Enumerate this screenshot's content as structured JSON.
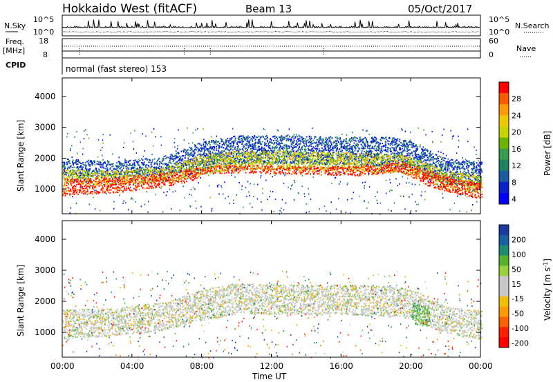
{
  "header": {
    "title": "Hokkaido West (fitACF)",
    "beam": "Beam 13",
    "date": "05/Oct/2017"
  },
  "noise_panel": {
    "left_label": "N.Sky",
    "right_label": "N.Search",
    "left_ticks": [
      "10^5",
      "10^0"
    ],
    "right_ticks": [
      "10^5",
      "10^0"
    ]
  },
  "freq_panel": {
    "left_label_top": "Freq.",
    "left_label_bottom": "[MHz]",
    "right_label": "Nave",
    "left_ticks": [
      "18",
      "8"
    ],
    "right_ticks": [
      "60",
      "0"
    ]
  },
  "cpid_panel": {
    "label": "CPID",
    "text": "normal (fast stereo) 153"
  },
  "power_panel": {
    "ylabel": "Slant Range [km]",
    "yticks": [
      "4000",
      "3000",
      "2000",
      "1000"
    ],
    "colorbar_label": "Power [dB]",
    "colorbar_ticks": [
      "28",
      "24",
      "20",
      "16",
      "12",
      "8",
      "4"
    ],
    "colorbar_colors": [
      "#ff0000",
      "#ff5a00",
      "#ff9a00",
      "#f0c800",
      "#c8d400",
      "#6ab400",
      "#3a9a50",
      "#208060",
      "#1a5aa0",
      "#0a20c8",
      "#0000ff"
    ]
  },
  "velocity_panel": {
    "ylabel": "Slant Range [km]",
    "yticks": [
      "4000",
      "3000",
      "2000",
      "1000"
    ],
    "colorbar_label": "Velocity [m s^-1]",
    "colorbar_ticks": [
      "200",
      "100",
      "50",
      "15",
      "-15",
      "-50",
      "-100",
      "-200"
    ],
    "colorbar_colors": [
      "#1a3aa0",
      "#1a60a0",
      "#208a70",
      "#58b030",
      "#9ad040",
      "#c8c8c8",
      "#c8c8c8",
      "#f0c000",
      "#ff9a00",
      "#ff6000",
      "#ff2000",
      "#ff0000"
    ]
  },
  "xaxis": {
    "label": "Time UT",
    "ticks": [
      "00:00",
      "04:00",
      "08:00",
      "12:00",
      "16:00",
      "20:00",
      "00:00"
    ]
  },
  "chart_data": {
    "type": "heatmap",
    "title": "Hokkaido West (fitACF)",
    "subtitle": "Beam 13",
    "date": "05/Oct/2017",
    "xlabel": "Time UT",
    "x_range_hours": [
      0,
      24
    ],
    "ylabel": "Slant Range [km]",
    "ylim": [
      200,
      4600
    ],
    "panels": [
      {
        "name": "Power [dB]",
        "scale_range": [
          0,
          30
        ],
        "scatter_layers": [
          {
            "level": "outer",
            "value": 6,
            "band": [
              [
                0,
                1450,
                2000
              ],
              [
                3,
                1400,
                1900
              ],
              [
                6,
                1500,
                2100
              ],
              [
                8,
                1650,
                2550
              ],
              [
                10,
                1850,
                2750
              ],
              [
                13,
                1850,
                2750
              ],
              [
                16,
                1800,
                2700
              ],
              [
                19,
                1750,
                2700
              ],
              [
                20,
                1700,
                2550
              ],
              [
                22,
                1200,
                2000
              ],
              [
                24,
                1100,
                1900
              ]
            ]
          },
          {
            "level": "middle",
            "value": 18,
            "band": [
              [
                0,
                1200,
                1650
              ],
              [
                3,
                1150,
                1600
              ],
              [
                6,
                1250,
                1750
              ],
              [
                8,
                1500,
                2150
              ],
              [
                10,
                1650,
                2250
              ],
              [
                13,
                1650,
                2250
              ],
              [
                16,
                1600,
                2200
              ],
              [
                19,
                1550,
                2150
              ],
              [
                20,
                1500,
                2050
              ],
              [
                22,
                1000,
                1600
              ],
              [
                24,
                900,
                1450
              ]
            ]
          },
          {
            "level": "core",
            "value": 28,
            "band": [
              [
                0,
                800,
                1350
              ],
              [
                3,
                900,
                1400
              ],
              [
                6,
                1100,
                1550
              ],
              [
                7.5,
                1300,
                1700
              ],
              [
                8,
                1500,
                1750
              ],
              [
                10,
                1550,
                1800
              ],
              [
                13,
                1500,
                1750
              ],
              [
                17,
                1450,
                1750
              ],
              [
                19.5,
                1550,
                1900
              ],
              [
                21,
                1100,
                1600
              ],
              [
                23,
                800,
                1300
              ],
              [
                24,
                700,
                1200
              ]
            ]
          }
        ]
      },
      {
        "name": "Velocity [m s^-1]",
        "scale_range": [
          -200,
          200
        ],
        "scatter_layers": [
          {
            "level": "near-zero",
            "value": 0,
            "band": [
              [
                0,
                800,
                1750
              ],
              [
                3,
                900,
                1800
              ],
              [
                6,
                1100,
                2000
              ],
              [
                8,
                1400,
                2400
              ],
              [
                10,
                1600,
                2600
              ],
              [
                13,
                1600,
                2550
              ],
              [
                16,
                1600,
                2550
              ],
              [
                19,
                1500,
                2500
              ],
              [
                20,
                1450,
                2400
              ],
              [
                22,
                950,
                1850
              ],
              [
                24,
                800,
                1700
              ]
            ]
          },
          {
            "level": "positive",
            "value": 40,
            "band": [
              [
                20,
                1300,
                2000
              ],
              [
                21,
                1200,
                1800
              ]
            ]
          }
        ]
      }
    ]
  }
}
